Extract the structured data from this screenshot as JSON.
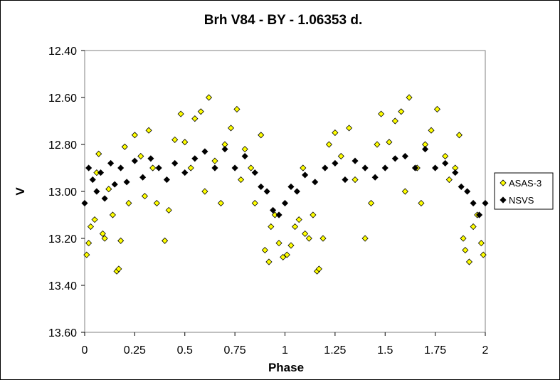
{
  "chart_data": {
    "type": "scatter",
    "title": "Brh V84 - BY - 1.06353 d.",
    "xlabel": "Phase",
    "ylabel": "V",
    "xlim": [
      0,
      2
    ],
    "ylim": [
      13.6,
      12.4
    ],
    "y_inverted": true,
    "grid": false,
    "legend_position": "right",
    "x_ticks": [
      "0",
      "0.25",
      "0.5",
      "0.75",
      "1",
      "1.25",
      "1.5",
      "1.75",
      "2"
    ],
    "y_ticks": [
      "12.40",
      "12.60",
      "12.80",
      "13.00",
      "13.20",
      "13.40",
      "13.60"
    ],
    "series": [
      {
        "name": "ASAS-3",
        "color": "#ffff00",
        "edge": "#000000",
        "marker": "diamond",
        "points": [
          [
            0.01,
            13.27
          ],
          [
            0.02,
            13.22
          ],
          [
            0.03,
            13.15
          ],
          [
            0.05,
            13.12
          ],
          [
            0.06,
            12.92
          ],
          [
            0.07,
            12.84
          ],
          [
            0.09,
            13.18
          ],
          [
            0.1,
            13.2
          ],
          [
            0.12,
            12.99
          ],
          [
            0.14,
            13.1
          ],
          [
            0.16,
            13.34
          ],
          [
            0.17,
            13.33
          ],
          [
            0.18,
            13.21
          ],
          [
            0.2,
            12.81
          ],
          [
            0.22,
            13.05
          ],
          [
            0.25,
            12.76
          ],
          [
            0.28,
            12.85
          ],
          [
            0.3,
            13.02
          ],
          [
            0.32,
            12.74
          ],
          [
            0.34,
            12.9
          ],
          [
            0.36,
            13.05
          ],
          [
            0.4,
            13.21
          ],
          [
            0.42,
            13.08
          ],
          [
            0.45,
            12.78
          ],
          [
            0.48,
            12.67
          ],
          [
            0.5,
            12.79
          ],
          [
            0.53,
            12.9
          ],
          [
            0.55,
            12.69
          ],
          [
            0.58,
            12.66
          ],
          [
            0.6,
            13.0
          ],
          [
            0.62,
            12.6
          ],
          [
            0.65,
            12.87
          ],
          [
            0.68,
            13.05
          ],
          [
            0.7,
            12.8
          ],
          [
            0.73,
            12.73
          ],
          [
            0.76,
            12.65
          ],
          [
            0.78,
            12.95
          ],
          [
            0.8,
            12.82
          ],
          [
            0.83,
            12.9
          ],
          [
            0.85,
            13.05
          ],
          [
            0.88,
            12.76
          ],
          [
            0.9,
            13.25
          ],
          [
            0.92,
            13.3
          ],
          [
            0.93,
            13.15
          ],
          [
            0.95,
            13.1
          ],
          [
            0.97,
            13.22
          ],
          [
            0.99,
            13.28
          ],
          [
            1.01,
            13.27
          ],
          [
            1.03,
            13.23
          ],
          [
            1.05,
            13.15
          ],
          [
            1.07,
            13.12
          ],
          [
            1.09,
            12.9
          ],
          [
            1.1,
            13.18
          ],
          [
            1.12,
            13.2
          ],
          [
            1.14,
            13.1
          ],
          [
            1.16,
            13.34
          ],
          [
            1.17,
            13.33
          ],
          [
            1.19,
            13.2
          ],
          [
            1.22,
            12.8
          ],
          [
            1.25,
            12.75
          ],
          [
            1.28,
            12.85
          ],
          [
            1.32,
            12.73
          ],
          [
            1.35,
            12.95
          ],
          [
            1.4,
            13.2
          ],
          [
            1.43,
            13.05
          ],
          [
            1.46,
            12.8
          ],
          [
            1.48,
            12.67
          ],
          [
            1.52,
            12.79
          ],
          [
            1.55,
            12.7
          ],
          [
            1.58,
            12.66
          ],
          [
            1.6,
            13.0
          ],
          [
            1.62,
            12.6
          ],
          [
            1.66,
            12.9
          ],
          [
            1.68,
            13.05
          ],
          [
            1.7,
            12.8
          ],
          [
            1.73,
            12.74
          ],
          [
            1.76,
            12.65
          ],
          [
            1.8,
            12.85
          ],
          [
            1.82,
            12.95
          ],
          [
            1.85,
            12.9
          ],
          [
            1.87,
            12.76
          ],
          [
            1.89,
            13.2
          ],
          [
            1.9,
            13.25
          ],
          [
            1.92,
            13.3
          ],
          [
            1.94,
            13.15
          ],
          [
            1.96,
            13.1
          ],
          [
            1.98,
            13.22
          ],
          [
            1.99,
            13.27
          ]
        ]
      },
      {
        "name": "NSVS",
        "color": "#000000",
        "edge": "#000000",
        "marker": "diamond",
        "points": [
          [
            0.0,
            13.05
          ],
          [
            0.02,
            12.9
          ],
          [
            0.04,
            12.95
          ],
          [
            0.06,
            13.0
          ],
          [
            0.08,
            12.92
          ],
          [
            0.1,
            13.03
          ],
          [
            0.13,
            12.88
          ],
          [
            0.15,
            12.97
          ],
          [
            0.18,
            12.9
          ],
          [
            0.21,
            12.96
          ],
          [
            0.25,
            12.87
          ],
          [
            0.29,
            12.94
          ],
          [
            0.33,
            12.86
          ],
          [
            0.37,
            12.9
          ],
          [
            0.41,
            12.95
          ],
          [
            0.45,
            12.88
          ],
          [
            0.5,
            12.92
          ],
          [
            0.55,
            12.86
          ],
          [
            0.6,
            12.83
          ],
          [
            0.65,
            12.9
          ],
          [
            0.7,
            12.82
          ],
          [
            0.75,
            12.9
          ],
          [
            0.8,
            12.85
          ],
          [
            0.85,
            12.92
          ],
          [
            0.88,
            12.98
          ],
          [
            0.91,
            13.0
          ],
          [
            0.94,
            13.08
          ],
          [
            0.97,
            13.1
          ],
          [
            1.0,
            13.05
          ],
          [
            1.03,
            12.98
          ],
          [
            1.06,
            13.0
          ],
          [
            1.1,
            12.93
          ],
          [
            1.15,
            12.96
          ],
          [
            1.2,
            12.9
          ],
          [
            1.25,
            12.88
          ],
          [
            1.3,
            12.95
          ],
          [
            1.35,
            12.87
          ],
          [
            1.4,
            12.9
          ],
          [
            1.45,
            12.94
          ],
          [
            1.5,
            12.9
          ],
          [
            1.55,
            12.86
          ],
          [
            1.6,
            12.85
          ],
          [
            1.65,
            12.9
          ],
          [
            1.7,
            12.82
          ],
          [
            1.75,
            12.9
          ],
          [
            1.8,
            12.88
          ],
          [
            1.85,
            12.92
          ],
          [
            1.88,
            12.98
          ],
          [
            1.91,
            13.0
          ],
          [
            1.94,
            13.05
          ],
          [
            1.97,
            13.1
          ],
          [
            2.0,
            13.05
          ]
        ]
      }
    ]
  }
}
